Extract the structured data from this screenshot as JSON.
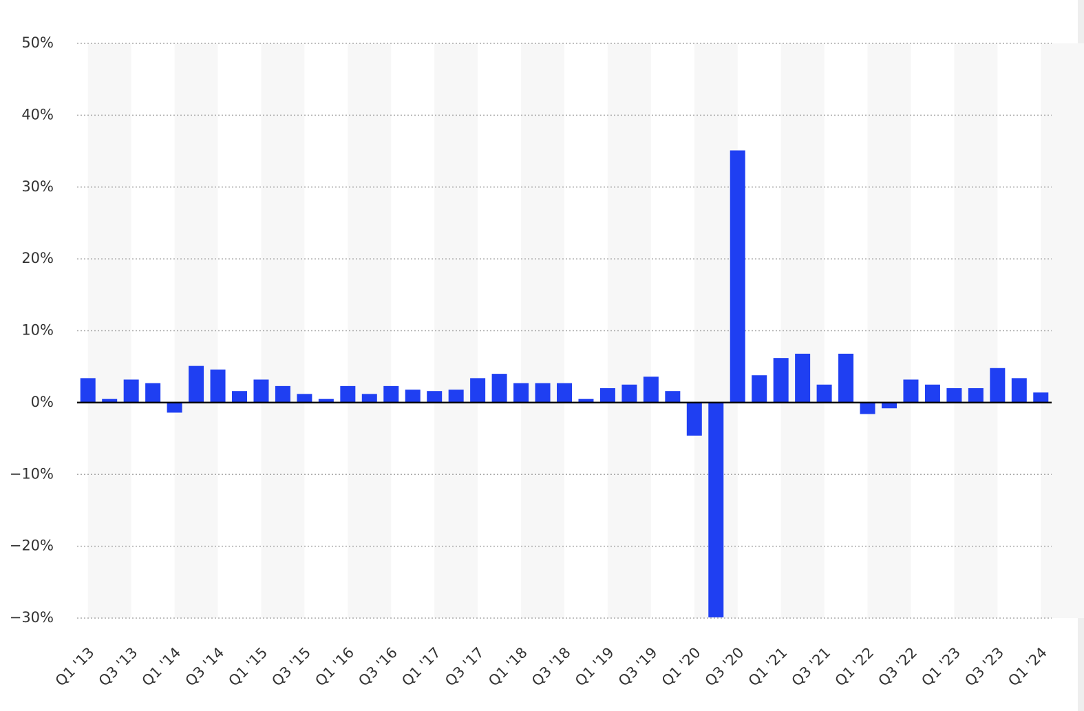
{
  "chart_data": {
    "type": "bar",
    "color": "#1f3ff2",
    "grid": true,
    "categories": [
      "Q1 '13",
      null,
      "Q3 '13",
      null,
      "Q1 '14",
      null,
      "Q3 '14",
      null,
      "Q1 '15",
      null,
      "Q3 '15",
      null,
      "Q1 '16",
      null,
      "Q3 '16",
      null,
      "Q1 '17",
      null,
      "Q3 '17",
      null,
      "Q1 '18",
      null,
      "Q3 '18",
      null,
      "Q1 '19",
      null,
      "Q3 '19",
      null,
      "Q1 '20",
      null,
      "Q3 '20",
      null,
      "Q1 '21",
      null,
      "Q3 '21",
      null,
      "Q1 '22",
      null,
      "Q3 '22",
      null,
      "Q1 '23",
      null,
      "Q3 '23",
      null,
      "Q1 '24"
    ],
    "values": [
      3.4,
      0.5,
      3.2,
      2.7,
      -1.4,
      5.1,
      4.6,
      1.6,
      3.2,
      2.3,
      1.2,
      0.5,
      2.3,
      1.2,
      2.3,
      1.8,
      1.6,
      1.8,
      3.4,
      4.0,
      2.7,
      2.7,
      2.7,
      0.5,
      2.0,
      2.5,
      3.6,
      1.6,
      -4.6,
      -29.9,
      35.1,
      3.8,
      6.2,
      6.8,
      2.5,
      6.8,
      -1.6,
      -0.8,
      3.2,
      2.5,
      2.0,
      2.0,
      4.8,
      3.4,
      1.4
    ],
    "ylim": [
      -30,
      50
    ],
    "yticks": [
      {
        "value": -30,
        "label": "−30%"
      },
      {
        "value": -20,
        "label": "−20%"
      },
      {
        "value": -10,
        "label": "−10%"
      },
      {
        "value": 0,
        "label": "0%"
      },
      {
        "value": 10,
        "label": "10%"
      },
      {
        "value": 20,
        "label": "20%"
      },
      {
        "value": 30,
        "label": "30%"
      },
      {
        "value": 40,
        "label": "40%"
      },
      {
        "value": 50,
        "label": "50%"
      }
    ]
  }
}
